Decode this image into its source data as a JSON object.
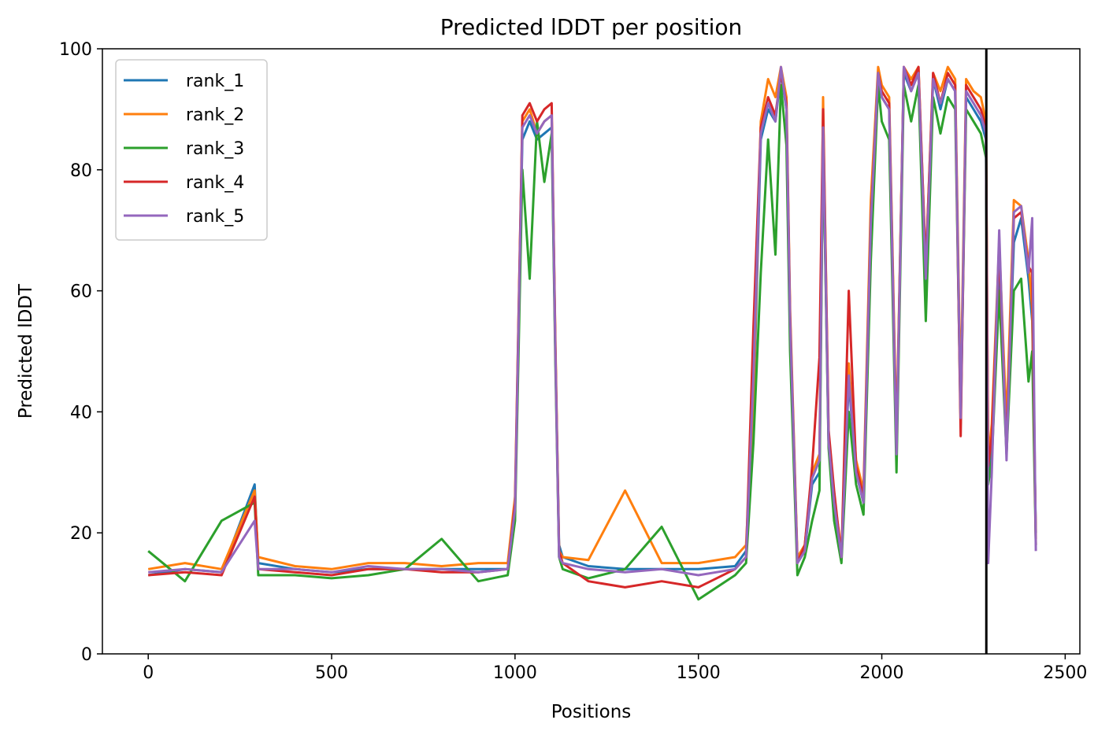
{
  "chart_data": {
    "type": "line",
    "title": "Predicted lDDT per position",
    "xlabel": "Positions",
    "ylabel": "Predicted lDDT",
    "xlim": [
      -125,
      2540
    ],
    "ylim": [
      0,
      100
    ],
    "xticks": [
      0,
      500,
      1000,
      1500,
      2000,
      2500
    ],
    "yticks": [
      0,
      20,
      40,
      60,
      80,
      100
    ],
    "grid": false,
    "legend_position": "top-left",
    "vertical_line": {
      "x": 2285,
      "color": "#000000"
    },
    "x": [
      0,
      100,
      200,
      290,
      300,
      400,
      500,
      600,
      700,
      800,
      900,
      980,
      1000,
      1020,
      1040,
      1060,
      1080,
      1100,
      1110,
      1120,
      1130,
      1200,
      1300,
      1400,
      1500,
      1600,
      1630,
      1650,
      1670,
      1690,
      1710,
      1725,
      1740,
      1750,
      1770,
      1790,
      1810,
      1830,
      1840,
      1855,
      1870,
      1890,
      1910,
      1930,
      1950,
      1970,
      1990,
      2000,
      2020,
      2040,
      2060,
      2080,
      2100,
      2120,
      2140,
      2160,
      2180,
      2200,
      2215,
      2230,
      2250,
      2270,
      2284,
      2290,
      2300,
      2320,
      2340,
      2360,
      2380,
      2400,
      2410,
      2420
    ],
    "series": [
      {
        "name": "rank_1",
        "color": "#1f77b4",
        "values": [
          13,
          14,
          13.5,
          28,
          15,
          14,
          13.5,
          14,
          14,
          14,
          14,
          14,
          24,
          85,
          88,
          85,
          86,
          87,
          50,
          18,
          16,
          14.5,
          14,
          14,
          14,
          14.5,
          17,
          40,
          85,
          90,
          88,
          96,
          90,
          55,
          15,
          17,
          28,
          30,
          86,
          35,
          25,
          16,
          45,
          30,
          25,
          70,
          96,
          92,
          90,
          35,
          96,
          93,
          96,
          60,
          95,
          90,
          95,
          93,
          40,
          92,
          90,
          88,
          85,
          30,
          35,
          65,
          35,
          68,
          72,
          62,
          55,
          20
        ]
      },
      {
        "name": "rank_2",
        "color": "#ff7f0e",
        "values": [
          14,
          15,
          14,
          27,
          16,
          14.5,
          14,
          15,
          15,
          14.5,
          15,
          15,
          26,
          88,
          90,
          86,
          88,
          89,
          52,
          17,
          16,
          15.5,
          27,
          15,
          15,
          16,
          18,
          42,
          88,
          95,
          92,
          97,
          92,
          57,
          16,
          18,
          30,
          33,
          92,
          36,
          26,
          17,
          48,
          32,
          27,
          75,
          97,
          94,
          92,
          36,
          97,
          95,
          97,
          64,
          96,
          93,
          97,
          95,
          42,
          95,
          93,
          92,
          88,
          32,
          38,
          68,
          38,
          75,
          74,
          65,
          57,
          19
        ]
      },
      {
        "name": "rank_3",
        "color": "#2ca02c",
        "values": [
          17,
          12,
          22,
          25,
          13,
          13,
          12.5,
          13,
          14,
          19,
          12,
          13,
          22,
          80,
          62,
          88,
          78,
          86,
          48,
          16,
          14,
          12.5,
          14,
          21,
          9,
          13,
          15,
          35,
          63,
          85,
          66,
          94,
          84,
          50,
          13,
          16,
          22,
          27,
          85,
          34,
          22,
          15,
          40,
          28,
          23,
          65,
          94,
          88,
          85,
          30,
          94,
          88,
          94,
          55,
          92,
          86,
          92,
          90,
          38,
          90,
          88,
          86,
          82,
          28,
          32,
          60,
          33,
          60,
          62,
          45,
          50,
          18
        ]
      },
      {
        "name": "rank_4",
        "color": "#d62728",
        "values": [
          13,
          13.5,
          13,
          26,
          14,
          13.5,
          13,
          14,
          14,
          13.5,
          13.5,
          14,
          25,
          89,
          91,
          88,
          90,
          91,
          51,
          17,
          15,
          12,
          11,
          12,
          11,
          14,
          16,
          54,
          87,
          92,
          89,
          96,
          91,
          56,
          15,
          18,
          31,
          49,
          90,
          37,
          27,
          16,
          60,
          31,
          26,
          72,
          96,
          93,
          91,
          34,
          97,
          94,
          97,
          64,
          96,
          91,
          96,
          94,
          36,
          94,
          92,
          90,
          87,
          31,
          36,
          67,
          34,
          72,
          73,
          64,
          63,
          18
        ]
      },
      {
        "name": "rank_5",
        "color": "#9467bd",
        "values": [
          13.5,
          14,
          13.5,
          22,
          14,
          14,
          13.5,
          14.5,
          14,
          14,
          13.5,
          14,
          24,
          87,
          89,
          86,
          88,
          89,
          50,
          16,
          15,
          14,
          13.5,
          14,
          13,
          14,
          16,
          46,
          86,
          91,
          88,
          97,
          90,
          55,
          15,
          17,
          29,
          32,
          87,
          35,
          25,
          16,
          46,
          30,
          25,
          71,
          96,
          92,
          90,
          33,
          97,
          93,
          96,
          62,
          95,
          91,
          95,
          93,
          39,
          93,
          91,
          89,
          86,
          15,
          30,
          70,
          32,
          73,
          74,
          63,
          72,
          17
        ]
      }
    ]
  }
}
